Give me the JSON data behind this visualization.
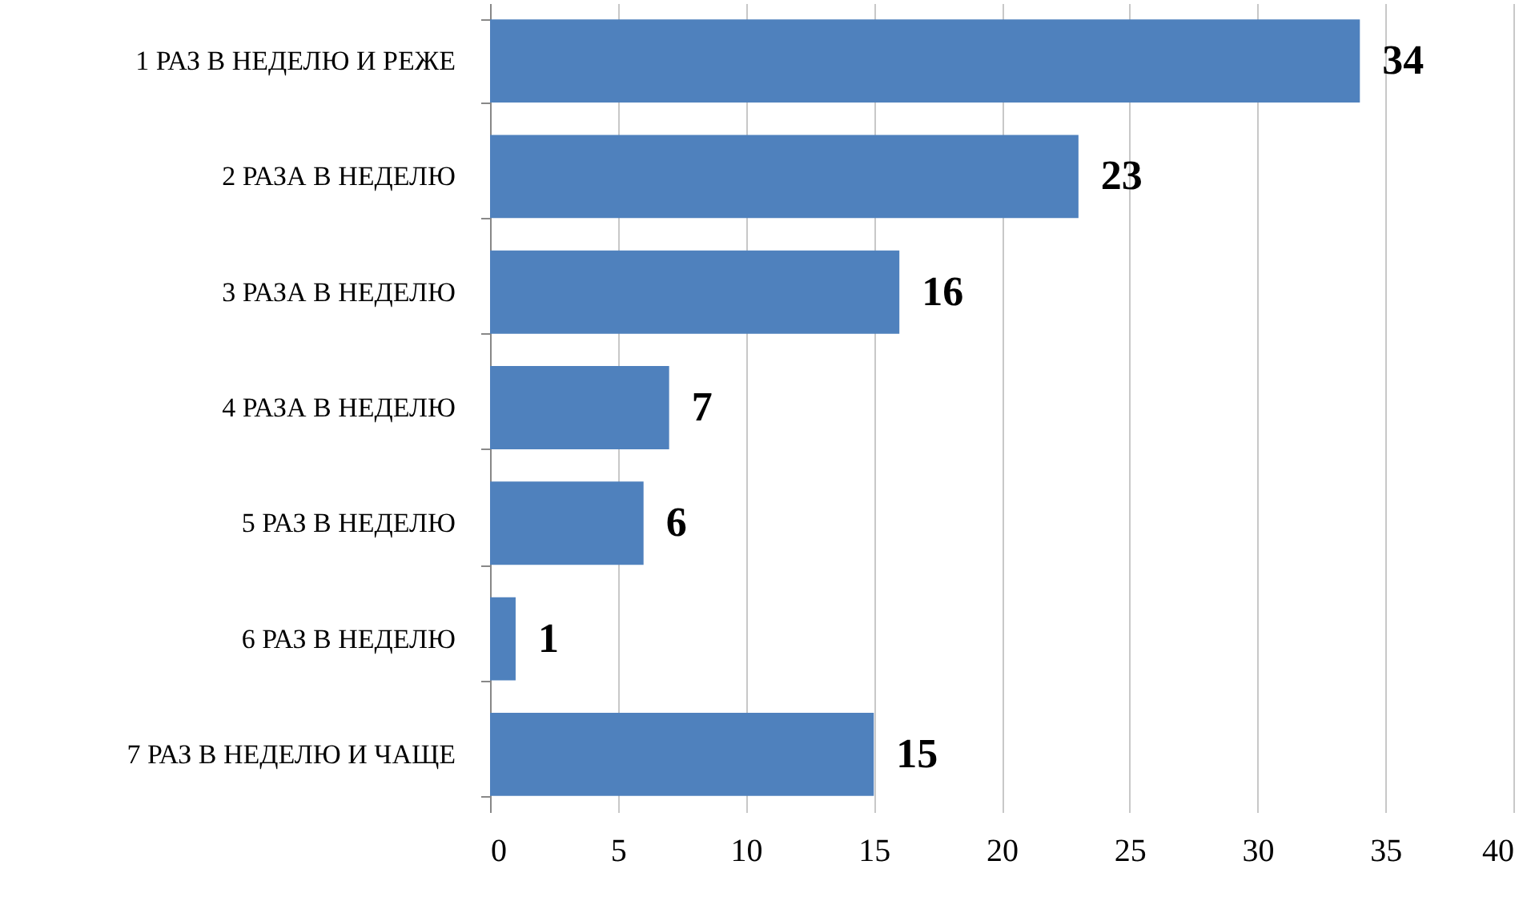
{
  "chart_data": {
    "type": "bar",
    "orientation": "horizontal",
    "categories": [
      "1 РАЗ В НЕДЕЛЮ И РЕЖЕ",
      "2 РАЗА В НЕДЕЛЮ",
      "3 РАЗА В НЕДЕЛЮ",
      "4 РАЗА В НЕДЕЛЮ",
      "5 РАЗ В НЕДЕЛЮ",
      "6 РАЗ В НЕДЕЛЮ",
      "7 РАЗ В НЕДЕЛЮ И ЧАЩЕ"
    ],
    "values": [
      34,
      23,
      16,
      7,
      6,
      1,
      15
    ],
    "color": "#4f81bd",
    "xlim": [
      0,
      40
    ],
    "xticks": [
      0,
      5,
      10,
      15,
      20,
      25,
      30,
      35,
      40
    ],
    "grid": "x",
    "data_labels": true
  }
}
